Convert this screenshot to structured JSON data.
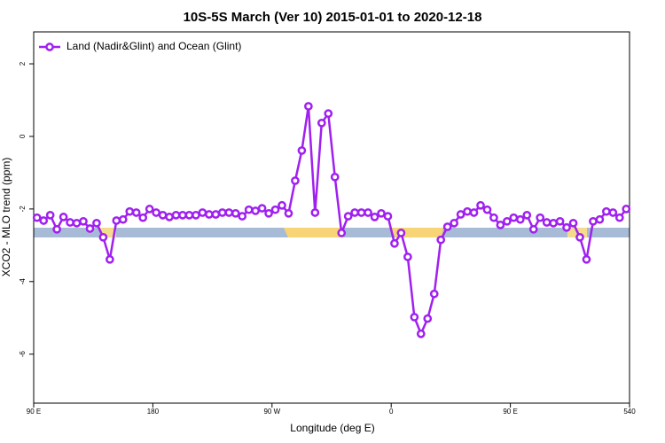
{
  "chart_data": {
    "type": "line",
    "title": "10S-5S March (Ver 10)   2015-01-01 to 2020-12-18",
    "x_label": "Longitude (deg E)",
    "y_label": "XCO2 - MLO trend (ppm)",
    "xlim": [
      90,
      540
    ],
    "xticks": [
      {
        "value": 90,
        "label": "90 E"
      },
      180,
      {
        "value": 270,
        "label": "90 W"
      },
      {
        "value": 360,
        "label": "0"
      },
      {
        "value": 450,
        "label": "90 E"
      },
      540
    ],
    "ylim": [
      -7.35,
      2.88
    ],
    "yticks": [
      2,
      0,
      -2,
      -4,
      -6
    ],
    "legend": "top-left",
    "x": [
      92.5,
      97.5,
      102.5,
      107.5,
      112.5,
      117.5,
      122.5,
      127.5,
      132.5,
      137.5,
      142.5,
      147.5,
      152.5,
      157.5,
      162.5,
      167.5,
      172.5,
      177.5,
      182.5,
      187.5,
      192.5,
      197.5,
      202.5,
      207.5,
      212.5,
      217.5,
      222.5,
      227.5,
      232.5,
      237.5,
      242.5,
      247.5,
      252.5,
      257.5,
      262.5,
      267.5,
      272.5,
      277.5,
      282.5,
      287.5,
      292.5,
      297.5,
      302.5,
      307.5,
      312.5,
      317.5,
      322.5,
      327.5,
      332.5,
      337.5,
      342.5,
      347.5,
      352.5,
      357.5,
      362.5,
      367.5,
      372.5,
      377.5,
      382.5,
      387.5,
      392.5,
      397.5,
      402.5,
      407.5,
      412.5,
      417.5,
      422.5,
      427.5,
      432.5,
      437.5,
      442.5,
      447.5,
      452.5,
      457.5,
      462.5,
      467.5,
      472.5,
      477.5,
      482.5,
      487.5,
      492.5,
      497.5,
      502.5,
      507.5,
      512.5,
      517.5,
      522.5,
      527.5,
      532.5,
      537.5
    ],
    "series": [
      {
        "name": "Land (Nadir&Glint) and Ocean (Glint)",
        "color": "#a020f0",
        "values": [
          -2.24,
          -2.32,
          -2.17,
          -2.56,
          -2.22,
          -2.37,
          -2.39,
          -2.34,
          -2.54,
          -2.39,
          -2.78,
          -3.39,
          -2.32,
          -2.29,
          -2.07,
          -2.1,
          -2.24,
          -2.0,
          -2.1,
          -2.17,
          -2.22,
          -2.17,
          -2.17,
          -2.17,
          -2.17,
          -2.1,
          -2.15,
          -2.15,
          -2.1,
          -2.1,
          -2.12,
          -2.2,
          -2.02,
          -2.05,
          -1.98,
          -2.12,
          -2.02,
          -1.9,
          -2.12,
          -1.22,
          -0.39,
          0.83,
          -2.1,
          0.37,
          0.63,
          -1.12,
          -2.66,
          -2.2,
          -2.1,
          -2.1,
          -2.1,
          -2.22,
          -2.12,
          -2.2,
          -2.95,
          -2.66,
          -3.32,
          -4.98,
          -5.44,
          -5.02,
          -4.34,
          -2.85,
          -2.49,
          -2.39,
          -2.15,
          -2.07,
          -2.1,
          -1.9,
          -2.02,
          -2.24,
          -2.44,
          -2.34,
          -2.24,
          -2.29,
          -2.17,
          -2.56,
          -2.24,
          -2.37,
          -2.39,
          -2.34,
          -2.51,
          -2.39,
          -2.78,
          -3.39,
          -2.34,
          -2.29,
          -2.07,
          -2.1,
          -2.24,
          -2.0
        ]
      }
    ]
  }
}
